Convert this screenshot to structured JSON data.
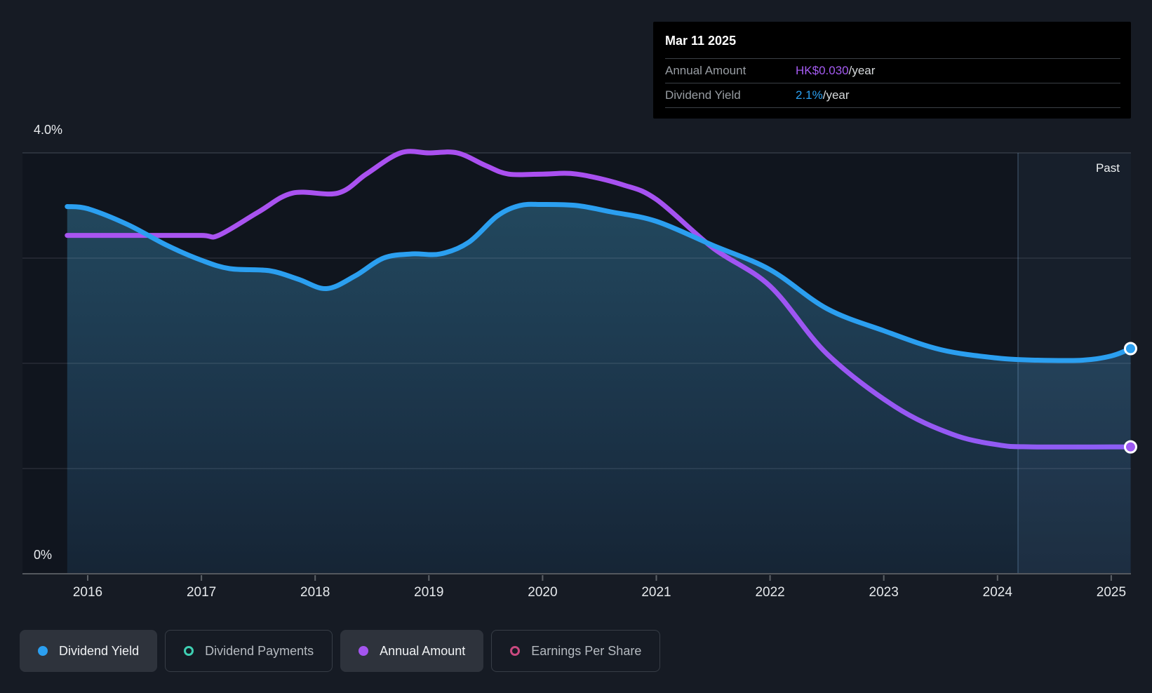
{
  "tooltip": {
    "date": "Mar 11 2025",
    "rows": [
      {
        "label": "Annual Amount",
        "value": "HK$0.030",
        "suffix": "/year",
        "value_color": "#a55bf2"
      },
      {
        "label": "Dividend Yield",
        "value": "2.1%",
        "suffix": "/year",
        "value_color": "#2b9ff0"
      }
    ]
  },
  "legend": {
    "items": [
      {
        "label": "Dividend Yield",
        "color": "#2b9ff0",
        "style": "filled"
      },
      {
        "label": "Dividend Payments",
        "color": "#3ecfb2",
        "style": "hollow"
      },
      {
        "label": "Annual Amount",
        "color": "#a455ef",
        "style": "filled"
      },
      {
        "label": "Earnings Per Share",
        "color": "#c9497f",
        "style": "hollow"
      }
    ]
  },
  "chart_data": {
    "type": "line",
    "past_label": "Past",
    "past_band_start_year": 2024.18,
    "x_ticks": [
      "2016",
      "2017",
      "2018",
      "2019",
      "2020",
      "2021",
      "2022",
      "2023",
      "2024",
      "2025"
    ],
    "x_tick_years": [
      2016,
      2017,
      2018,
      2019,
      2020,
      2021,
      2022,
      2023,
      2024,
      2025
    ],
    "x_range": [
      2015.82,
      2025.17
    ],
    "y_axis": {
      "unit": "%",
      "range": [
        0,
        4.0
      ],
      "label_top": "4.0%",
      "label_bottom": "0%",
      "gridline_pcts": [
        4,
        3,
        2,
        1
      ]
    },
    "y2_axis": {
      "unit": "HK$",
      "range": [
        0,
        0.0995
      ],
      "aligned_with_y1_pct": 4.0
    },
    "series": [
      {
        "name": "Dividend Yield",
        "axis": "y1",
        "color": "#2b9ff0",
        "visible": true,
        "end_marker": true,
        "end_value": "2.1%/year",
        "points": [
          [
            2015.82,
            3.49
          ],
          [
            2016.0,
            3.47
          ],
          [
            2016.35,
            3.32
          ],
          [
            2016.7,
            3.12
          ],
          [
            2017.0,
            2.98
          ],
          [
            2017.25,
            2.9
          ],
          [
            2017.6,
            2.88
          ],
          [
            2017.85,
            2.8
          ],
          [
            2018.1,
            2.71
          ],
          [
            2018.35,
            2.83
          ],
          [
            2018.6,
            3.0
          ],
          [
            2018.85,
            3.04
          ],
          [
            2019.1,
            3.04
          ],
          [
            2019.35,
            3.15
          ],
          [
            2019.6,
            3.4
          ],
          [
            2019.8,
            3.5
          ],
          [
            2020.0,
            3.51
          ],
          [
            2020.3,
            3.5
          ],
          [
            2020.6,
            3.44
          ],
          [
            2021.0,
            3.35
          ],
          [
            2021.5,
            3.12
          ],
          [
            2022.0,
            2.89
          ],
          [
            2022.5,
            2.52
          ],
          [
            2023.0,
            2.31
          ],
          [
            2023.5,
            2.13
          ],
          [
            2024.0,
            2.05
          ],
          [
            2024.35,
            2.03
          ],
          [
            2024.75,
            2.03
          ],
          [
            2025.0,
            2.07
          ],
          [
            2025.17,
            2.14
          ]
        ]
      },
      {
        "name": "Annual Amount",
        "axis": "y2",
        "color": "#a55bf2",
        "visible": true,
        "end_marker": true,
        "end_value": "HK$0.030/year",
        "points": [
          [
            2015.82,
            0.08
          ],
          [
            2016.5,
            0.08
          ],
          [
            2017.0,
            0.08
          ],
          [
            2017.15,
            0.08
          ],
          [
            2017.5,
            0.0855
          ],
          [
            2017.8,
            0.09
          ],
          [
            2018.2,
            0.09
          ],
          [
            2018.45,
            0.0945
          ],
          [
            2018.75,
            0.0995
          ],
          [
            2019.0,
            0.0995
          ],
          [
            2019.25,
            0.0995
          ],
          [
            2019.5,
            0.0965
          ],
          [
            2019.7,
            0.0945
          ],
          [
            2020.0,
            0.0945
          ],
          [
            2020.3,
            0.0945
          ],
          [
            2020.7,
            0.092
          ],
          [
            2021.0,
            0.0885
          ],
          [
            2021.5,
            0.077
          ],
          [
            2022.0,
            0.068
          ],
          [
            2022.5,
            0.052
          ],
          [
            2023.1,
            0.0395
          ],
          [
            2023.6,
            0.033
          ],
          [
            2024.0,
            0.0305
          ],
          [
            2024.3,
            0.03
          ],
          [
            2025.17,
            0.03
          ]
        ]
      },
      {
        "name": "Dividend Payments",
        "color": "#3ecfb2",
        "visible": false,
        "points": []
      },
      {
        "name": "Earnings Per Share",
        "color": "#c9497f",
        "visible": false,
        "points": []
      }
    ]
  }
}
